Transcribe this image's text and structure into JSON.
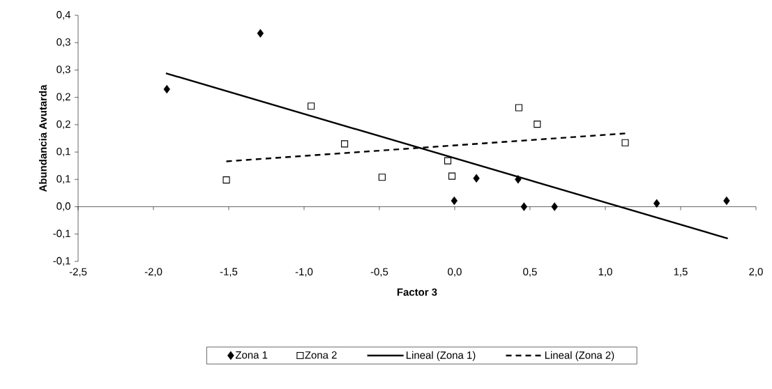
{
  "chart_data": {
    "type": "scatter",
    "xlabel": "Factor 3",
    "ylabel": "Abundancia Avutarda",
    "xlim": [
      -2.5,
      2.0
    ],
    "ylim": [
      -0.1,
      0.35
    ],
    "xticks": [
      {
        "value": -2.5,
        "label": "-2,5"
      },
      {
        "value": -2.0,
        "label": "-2,0"
      },
      {
        "value": -1.5,
        "label": "-1,5"
      },
      {
        "value": -1.0,
        "label": "-1,0"
      },
      {
        "value": -0.5,
        "label": "-0,5"
      },
      {
        "value": 0.0,
        "label": "0,0"
      },
      {
        "value": 0.5,
        "label": "0,5"
      },
      {
        "value": 1.0,
        "label": "1,0"
      },
      {
        "value": 1.5,
        "label": "1,5"
      },
      {
        "value": 2.0,
        "label": "2,0"
      }
    ],
    "yticks": [
      {
        "value": -0.1,
        "label": "-0,1"
      },
      {
        "value": -0.05,
        "label": "-0,1"
      },
      {
        "value": 0.0,
        "label": "0,0"
      },
      {
        "value": 0.05,
        "label": "0,1"
      },
      {
        "value": 0.1,
        "label": "0,1"
      },
      {
        "value": 0.15,
        "label": "0,2"
      },
      {
        "value": 0.2,
        "label": "0,2"
      },
      {
        "value": 0.25,
        "label": "0,3"
      },
      {
        "value": 0.3,
        "label": "0,3"
      },
      {
        "value": 0.35,
        "label": "0,4"
      }
    ],
    "legend": "bottom",
    "series": [
      {
        "name": "Zona 1",
        "marker": "diamond",
        "color": "#000000",
        "x": [
          -1.911,
          -1.29,
          -0.003,
          0.144,
          0.421,
          0.46,
          0.663,
          1.341,
          1.805
        ],
        "values": [
          0.215,
          0.317,
          0.011,
          0.052,
          0.05,
          0.0,
          0.0,
          0.006,
          0.011
        ]
      },
      {
        "name": "Zona 2",
        "marker": "square",
        "color": "#000000",
        "x": [
          -1.516,
          -0.953,
          -0.731,
          -0.482,
          -0.046,
          -0.018,
          0.426,
          0.548,
          1.132
        ],
        "values": [
          0.049,
          0.184,
          0.115,
          0.054,
          0.084,
          0.056,
          0.181,
          0.151,
          0.117
        ]
      },
      {
        "name": "Lineal (Zona 1)",
        "type": "line",
        "line_style": "solid",
        "color": "#000000",
        "x": [
          -1.917,
          1.813
        ],
        "values": [
          0.244,
          -0.058
        ]
      },
      {
        "name": "Lineal (Zona 2)",
        "type": "line",
        "line_style": "dashed",
        "color": "#000000",
        "x": [
          -1.516,
          1.132
        ],
        "values": [
          0.083,
          0.134
        ]
      }
    ]
  }
}
